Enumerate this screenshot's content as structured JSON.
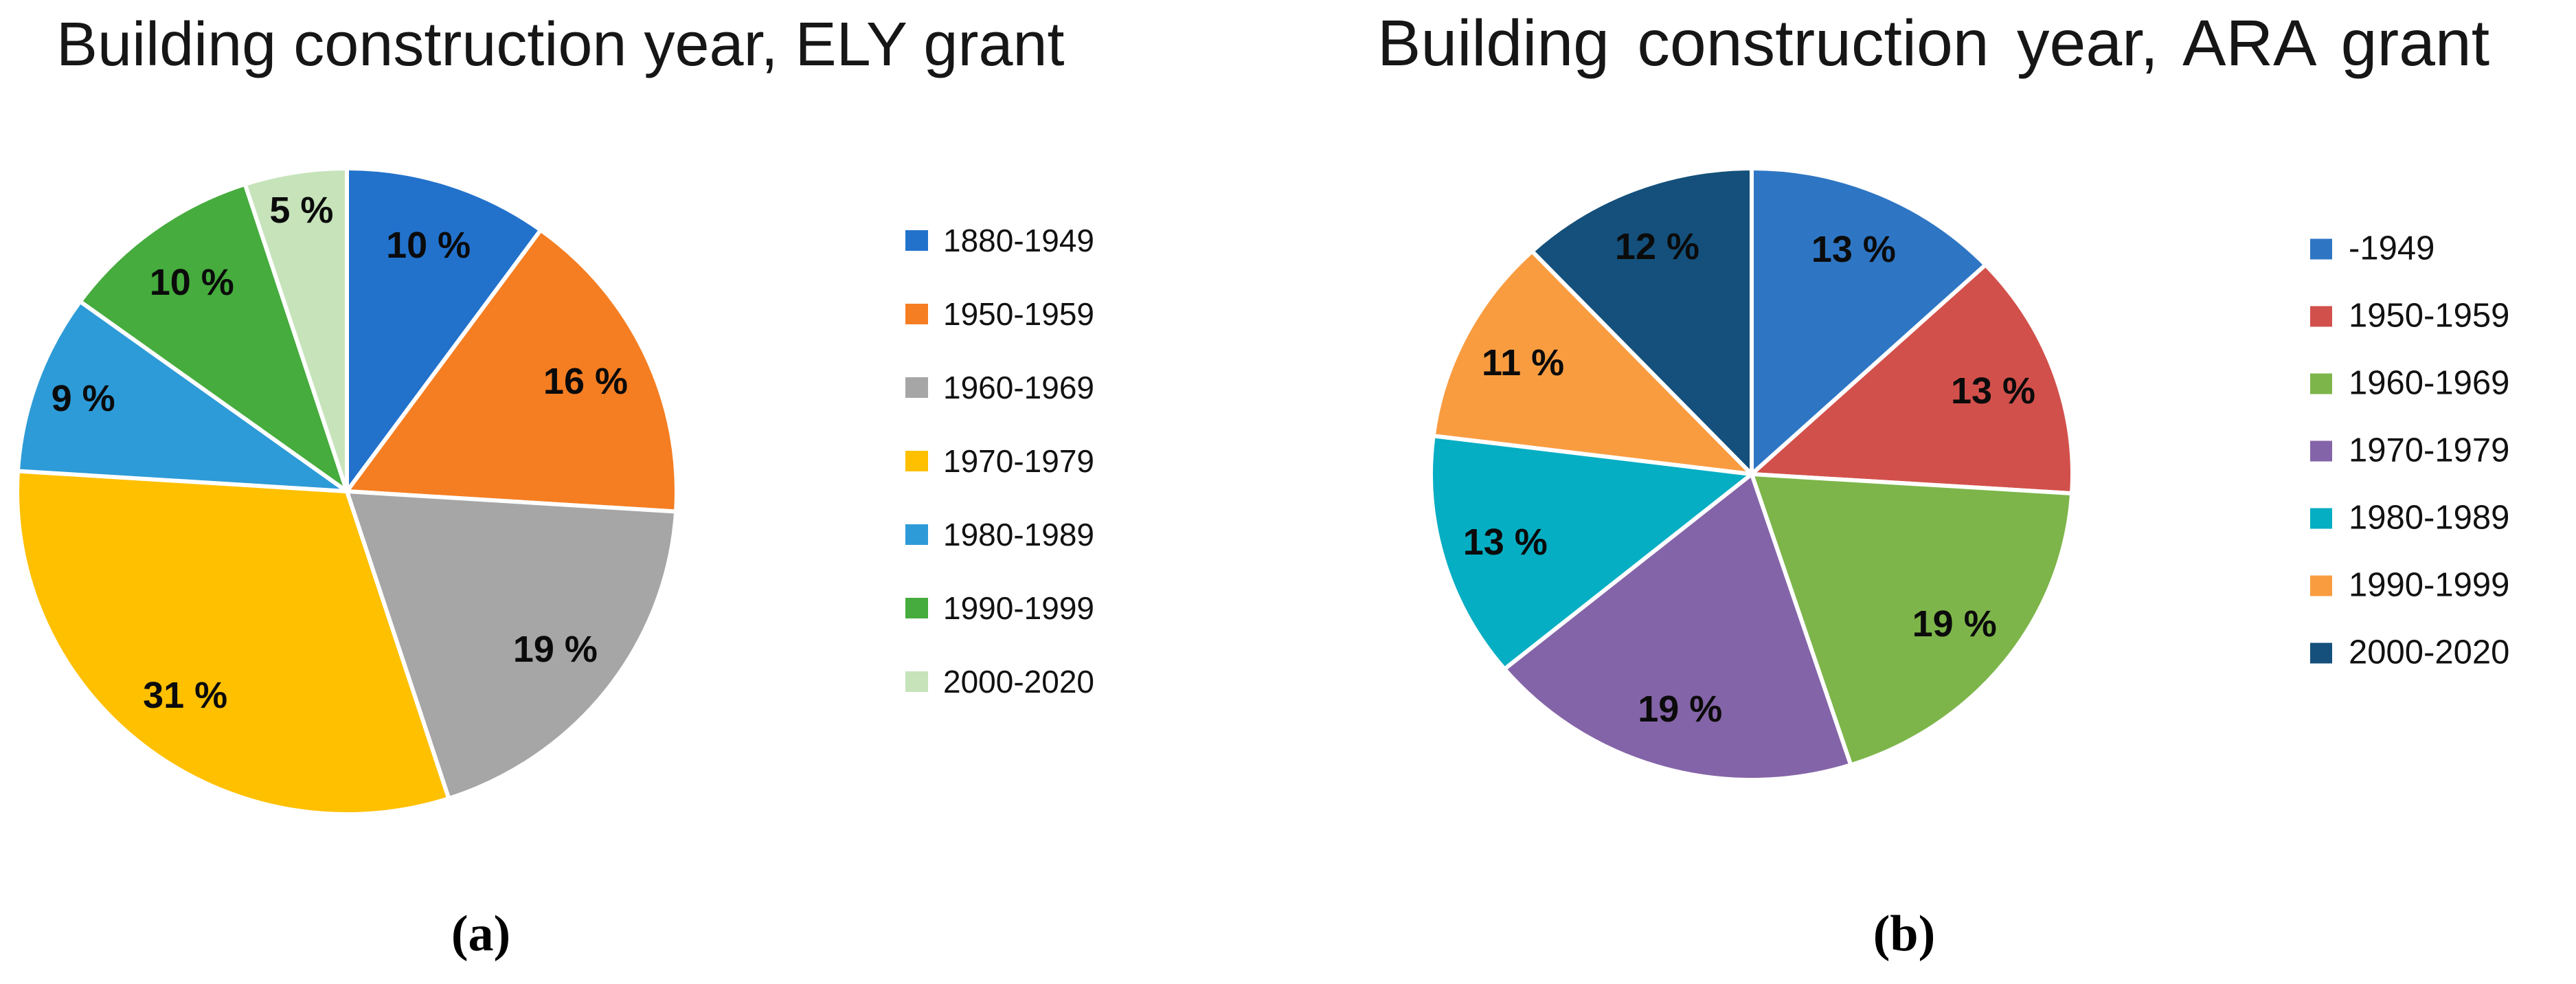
{
  "figure": {
    "captions": [
      "(a)",
      "(b)"
    ]
  },
  "chart_data": [
    {
      "type": "pie",
      "title": "Building construction year, ELY grant",
      "legend_position": "right",
      "start_angle_deg": 0,
      "direction": "clockwise",
      "value_unit": "%",
      "slices": [
        {
          "label": "1880-1949",
          "value": 10,
          "display": "10 %",
          "color": "#2272CC"
        },
        {
          "label": "1950-1959",
          "value": 16,
          "display": "16 %",
          "color": "#F57E22"
        },
        {
          "label": "1960-1969",
          "value": 19,
          "display": "19 %",
          "color": "#A6A6A6"
        },
        {
          "label": "1970-1979",
          "value": 31,
          "display": "31 %",
          "color": "#FFC000"
        },
        {
          "label": "1980-1989",
          "value": 9,
          "display": "9 %",
          "color": "#2D9BD7"
        },
        {
          "label": "1990-1999",
          "value": 10,
          "display": "10 %",
          "color": "#45AC3D"
        },
        {
          "label": "2000-2020",
          "value": 5,
          "display": "5 %",
          "color": "#C6E3BA"
        }
      ]
    },
    {
      "type": "pie",
      "title": "Building construction year, ARA grant",
      "legend_position": "right",
      "start_angle_deg": 0,
      "direction": "clockwise",
      "value_unit": "%",
      "slices": [
        {
          "label": "-1949",
          "value": 13,
          "display": "13 %",
          "color": "#2E76C4"
        },
        {
          "label": "1950-1959",
          "value": 13,
          "display": "13 %",
          "color": "#D2504B"
        },
        {
          "label": "1960-1969",
          "value": 19,
          "display": "19 %",
          "color": "#7DB54A"
        },
        {
          "label": "1970-1979",
          "value": 19,
          "display": "19 %",
          "color": "#8464A8"
        },
        {
          "label": "1980-1989",
          "value": 13,
          "display": "13 %",
          "color": "#06AEC3"
        },
        {
          "label": "1990-1999",
          "value": 11,
          "display": "11 %",
          "color": "#F99C40"
        },
        {
          "label": "2000-2020",
          "value": 12,
          "display": "12 %",
          "color": "#14507B"
        }
      ]
    }
  ]
}
